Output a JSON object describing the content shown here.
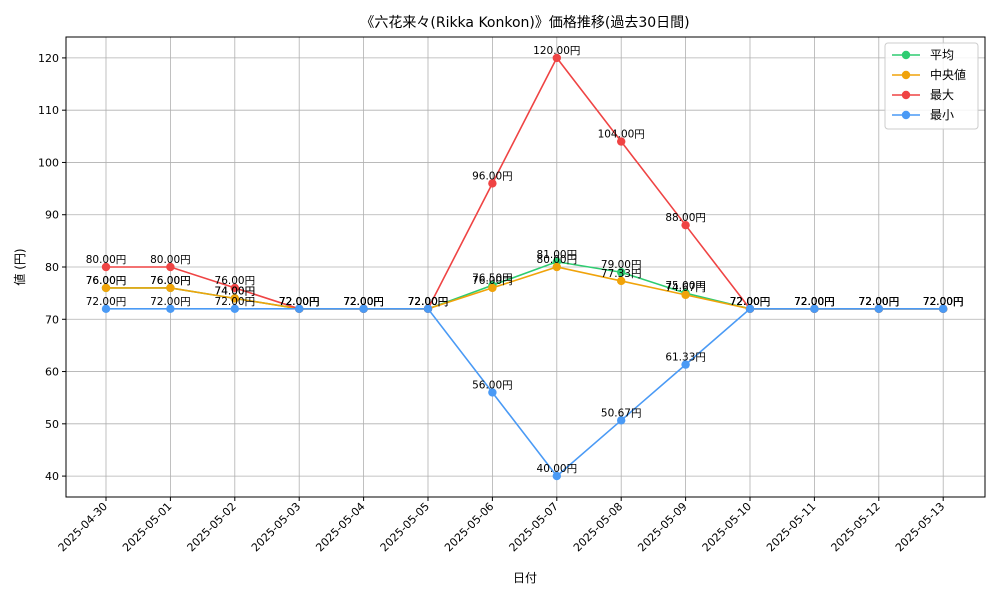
{
  "chart_data": {
    "type": "line",
    "title": "《六花来々(Rikka Konkon)》価格推移(過去30日間)",
    "xlabel": "日付",
    "ylabel": "値 (円)",
    "categories": [
      "2025-04-30",
      "2025-05-01",
      "2025-05-02",
      "2025-05-03",
      "2025-05-04",
      "2025-05-05",
      "2025-05-06",
      "2025-05-07",
      "2025-05-08",
      "2025-05-09",
      "2025-05-10",
      "2025-05-11",
      "2025-05-12",
      "2025-05-13"
    ],
    "ylim": [
      36,
      124
    ],
    "yticks": [
      40,
      50,
      60,
      70,
      80,
      90,
      100,
      110,
      120
    ],
    "grid": true,
    "legend_position": "top-right",
    "value_suffix": "円",
    "series": [
      {
        "name": "平均",
        "color": "#2ecc71",
        "values": [
          76,
          76,
          74,
          72,
          72,
          72,
          76.5,
          81,
          79,
          75,
          72,
          72,
          72,
          72
        ]
      },
      {
        "name": "中央値",
        "color": "#f0a30a",
        "values": [
          76,
          76,
          74,
          72,
          72,
          72,
          76,
          80,
          77.33,
          74.67,
          72,
          72,
          72,
          72
        ]
      },
      {
        "name": "最大",
        "color": "#ef4444",
        "values": [
          80,
          80,
          76,
          72,
          72,
          72,
          96,
          120,
          104,
          88,
          72,
          72,
          72,
          72
        ]
      },
      {
        "name": "最小",
        "color": "#4a9af5",
        "values": [
          72,
          72,
          72,
          72,
          72,
          72,
          56,
          40,
          50.67,
          61.33,
          72,
          72,
          72,
          72
        ]
      }
    ]
  }
}
